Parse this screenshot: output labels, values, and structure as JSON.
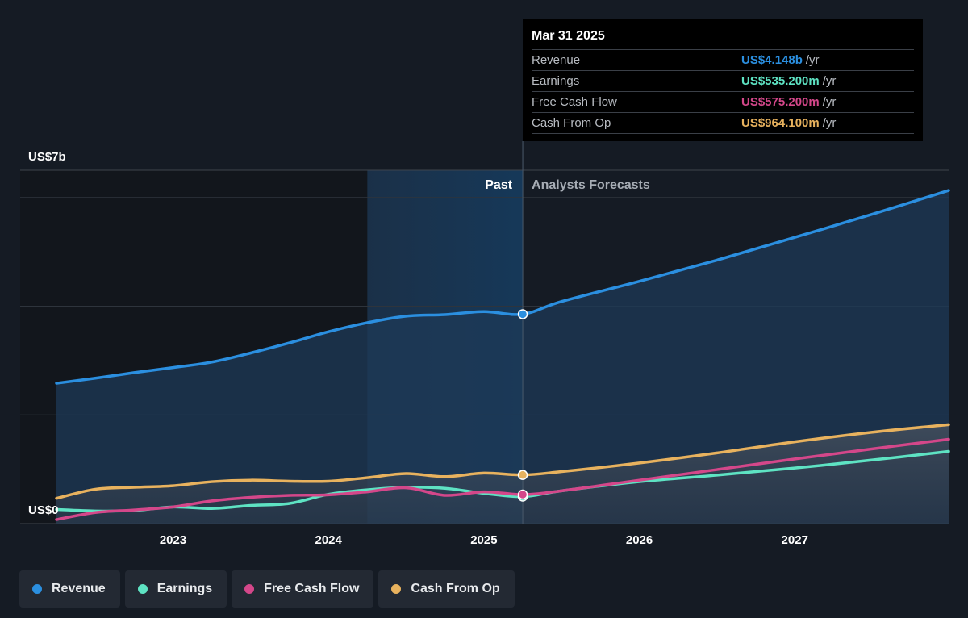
{
  "chart_data": {
    "type": "area",
    "y_axis": {
      "top_label": "US$7b",
      "bottom_label": "US$0",
      "ylim": [
        0,
        7
      ]
    },
    "x_axis": {
      "ticks": [
        "2023",
        "2024",
        "2025",
        "2026",
        "2027"
      ],
      "xlim": [
        2022.25,
        2027.99
      ]
    },
    "region_labels": {
      "past": "Past",
      "forecast": "Analysts Forecasts"
    },
    "divider_x": 2025.25,
    "highlight_start_x": 2024.25,
    "series": [
      {
        "name": "Revenue",
        "color": "#2b8fe0",
        "points": [
          [
            2022.25,
            2.78
          ],
          [
            2022.5,
            2.88
          ],
          [
            2022.75,
            2.99
          ],
          [
            2023.0,
            3.09
          ],
          [
            2023.25,
            3.2
          ],
          [
            2023.5,
            3.38
          ],
          [
            2023.75,
            3.58
          ],
          [
            2024.0,
            3.8
          ],
          [
            2024.25,
            3.98
          ],
          [
            2024.5,
            4.11
          ],
          [
            2024.75,
            4.14
          ],
          [
            2025.0,
            4.2
          ],
          [
            2025.25,
            4.148
          ],
          [
            2025.5,
            4.4
          ],
          [
            2026.0,
            4.8
          ],
          [
            2026.5,
            5.22
          ],
          [
            2027.0,
            5.67
          ],
          [
            2027.5,
            6.13
          ],
          [
            2027.99,
            6.6
          ]
        ]
      },
      {
        "name": "Earnings",
        "color": "#5ee3c3",
        "points": [
          [
            2022.25,
            0.28
          ],
          [
            2022.5,
            0.25
          ],
          [
            2022.75,
            0.26
          ],
          [
            2023.0,
            0.33
          ],
          [
            2023.25,
            0.3
          ],
          [
            2023.5,
            0.36
          ],
          [
            2023.75,
            0.4
          ],
          [
            2024.0,
            0.58
          ],
          [
            2024.25,
            0.67
          ],
          [
            2024.5,
            0.72
          ],
          [
            2024.75,
            0.7
          ],
          [
            2025.0,
            0.6
          ],
          [
            2025.25,
            0.5352
          ],
          [
            2025.5,
            0.65
          ],
          [
            2026.0,
            0.83
          ],
          [
            2026.5,
            0.96
          ],
          [
            2027.0,
            1.1
          ],
          [
            2027.5,
            1.26
          ],
          [
            2027.99,
            1.43
          ]
        ]
      },
      {
        "name": "Free Cash Flow",
        "color": "#d4478a",
        "points": [
          [
            2022.25,
            0.08
          ],
          [
            2022.5,
            0.22
          ],
          [
            2022.75,
            0.27
          ],
          [
            2023.0,
            0.33
          ],
          [
            2023.25,
            0.45
          ],
          [
            2023.5,
            0.52
          ],
          [
            2023.75,
            0.56
          ],
          [
            2024.0,
            0.57
          ],
          [
            2024.25,
            0.63
          ],
          [
            2024.5,
            0.71
          ],
          [
            2024.75,
            0.56
          ],
          [
            2025.0,
            0.63
          ],
          [
            2025.25,
            0.5752
          ],
          [
            2025.5,
            0.65
          ],
          [
            2026.0,
            0.86
          ],
          [
            2026.5,
            1.07
          ],
          [
            2027.0,
            1.28
          ],
          [
            2027.5,
            1.48
          ],
          [
            2027.99,
            1.67
          ]
        ]
      },
      {
        "name": "Cash From Op",
        "color": "#e8b25e",
        "points": [
          [
            2022.25,
            0.5
          ],
          [
            2022.5,
            0.68
          ],
          [
            2022.75,
            0.72
          ],
          [
            2023.0,
            0.75
          ],
          [
            2023.25,
            0.83
          ],
          [
            2023.5,
            0.86
          ],
          [
            2023.75,
            0.84
          ],
          [
            2024.0,
            0.84
          ],
          [
            2024.25,
            0.91
          ],
          [
            2024.5,
            0.99
          ],
          [
            2024.75,
            0.93
          ],
          [
            2025.0,
            1.0
          ],
          [
            2025.25,
            0.9641
          ],
          [
            2025.5,
            1.03
          ],
          [
            2026.0,
            1.2
          ],
          [
            2026.5,
            1.4
          ],
          [
            2027.0,
            1.62
          ],
          [
            2027.5,
            1.81
          ],
          [
            2027.99,
            1.96
          ]
        ]
      }
    ],
    "legend_position": "bottom-left",
    "grid": true
  },
  "tooltip": {
    "date": "Mar 31 2025",
    "rows": [
      {
        "label": "Revenue",
        "value": "US$4.148b",
        "unit": "/yr",
        "color": "#2b8fe0"
      },
      {
        "label": "Earnings",
        "value": "US$535.200m",
        "unit": "/yr",
        "color": "#5ee3c3"
      },
      {
        "label": "Free Cash Flow",
        "value": "US$575.200m",
        "unit": "/yr",
        "color": "#d4478a"
      },
      {
        "label": "Cash From Op",
        "value": "US$964.100m",
        "unit": "/yr",
        "color": "#e8b25e"
      }
    ]
  },
  "legend": [
    {
      "label": "Revenue",
      "color": "#2b8fe0"
    },
    {
      "label": "Earnings",
      "color": "#5ee3c3"
    },
    {
      "label": "Free Cash Flow",
      "color": "#d4478a"
    },
    {
      "label": "Cash From Op",
      "color": "#e8b25e"
    }
  ]
}
